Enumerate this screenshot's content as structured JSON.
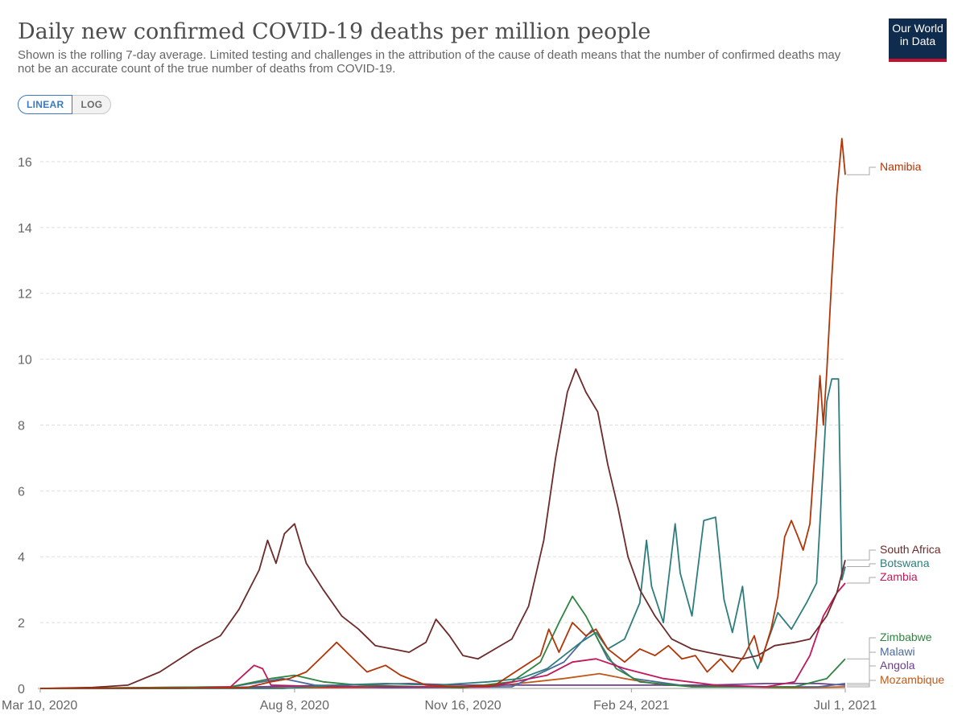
{
  "title": "Daily new confirmed COVID-19 deaths per million people",
  "subtitle": "Shown is the rolling 7-day average. Limited testing and challenges in the attribution of the cause of death means that the number of confirmed deaths may not be an accurate count of the true number of deaths from COVID-19.",
  "logo": {
    "line1": "Our World",
    "line2": "in Data"
  },
  "scale_toggle": {
    "linear": "LINEAR",
    "log": "LOG",
    "selected": "linear"
  },
  "chart_data": {
    "type": "line",
    "title": "Daily new confirmed COVID-19 deaths per million people",
    "ylim": [
      0,
      17
    ],
    "yticks": [
      0,
      2,
      4,
      6,
      8,
      10,
      12,
      14,
      16
    ],
    "ytick_labels": [
      "0",
      "2",
      "4",
      "6",
      "8",
      "10",
      "12",
      "14",
      "16"
    ],
    "xlim": [
      "2020-03-10",
      "2021-07-01"
    ],
    "xticks": [
      "2020-03-10",
      "2020-08-08",
      "2020-11-16",
      "2021-02-24",
      "2021-07-01"
    ],
    "xtick_labels": [
      "Mar 10, 2020",
      "Aug 8, 2020",
      "Nov 16, 2020",
      "Feb 24, 2021",
      "Jul 1, 2021"
    ],
    "grid": "horizontal-dashed",
    "legend": "right-end-labels",
    "series": [
      {
        "name": "Namibia",
        "color": "#b13507",
        "label_value": 15.6,
        "points": [
          [
            "2020-03-10",
            0
          ],
          [
            "2020-07-10",
            0.02
          ],
          [
            "2020-07-25",
            0.2
          ],
          [
            "2020-08-05",
            0.3
          ],
          [
            "2020-08-15",
            0.5
          ],
          [
            "2020-08-25",
            1.0
          ],
          [
            "2020-09-02",
            1.4
          ],
          [
            "2020-09-10",
            1.0
          ],
          [
            "2020-09-20",
            0.5
          ],
          [
            "2020-10-01",
            0.7
          ],
          [
            "2020-10-10",
            0.4
          ],
          [
            "2020-10-25",
            0.1
          ],
          [
            "2020-11-15",
            0.05
          ],
          [
            "2020-12-05",
            0.1
          ],
          [
            "2020-12-20",
            0.6
          ],
          [
            "2021-01-01",
            1.0
          ],
          [
            "2021-01-06",
            1.8
          ],
          [
            "2021-01-12",
            1.1
          ],
          [
            "2021-01-20",
            2.0
          ],
          [
            "2021-01-28",
            1.6
          ],
          [
            "2021-02-03",
            1.8
          ],
          [
            "2021-02-10",
            1.2
          ],
          [
            "2021-02-20",
            0.8
          ],
          [
            "2021-03-01",
            1.2
          ],
          [
            "2021-03-10",
            1.0
          ],
          [
            "2021-03-18",
            1.3
          ],
          [
            "2021-03-26",
            0.9
          ],
          [
            "2021-04-03",
            1.0
          ],
          [
            "2021-04-10",
            0.5
          ],
          [
            "2021-04-18",
            0.9
          ],
          [
            "2021-04-25",
            0.5
          ],
          [
            "2021-05-02",
            1.0
          ],
          [
            "2021-05-08",
            1.6
          ],
          [
            "2021-05-12",
            0.8
          ],
          [
            "2021-05-18",
            1.8
          ],
          [
            "2021-05-22",
            2.8
          ],
          [
            "2021-05-26",
            4.6
          ],
          [
            "2021-05-30",
            5.1
          ],
          [
            "2021-06-03",
            4.6
          ],
          [
            "2021-06-06",
            4.2
          ],
          [
            "2021-06-10",
            5.0
          ],
          [
            "2021-06-14",
            7.9
          ],
          [
            "2021-06-16",
            9.5
          ],
          [
            "2021-06-18",
            8.0
          ],
          [
            "2021-06-20",
            9.6
          ],
          [
            "2021-06-23",
            12.5
          ],
          [
            "2021-06-26",
            15.0
          ],
          [
            "2021-06-29",
            16.7
          ],
          [
            "2021-07-01",
            15.6
          ]
        ]
      },
      {
        "name": "South Africa",
        "color": "#6e2a2a",
        "label_value": 3.9,
        "points": [
          [
            "2020-03-10",
            0
          ],
          [
            "2020-04-10",
            0.03
          ],
          [
            "2020-05-01",
            0.1
          ],
          [
            "2020-05-20",
            0.5
          ],
          [
            "2020-06-10",
            1.2
          ],
          [
            "2020-06-25",
            1.6
          ],
          [
            "2020-07-06",
            2.4
          ],
          [
            "2020-07-18",
            3.6
          ],
          [
            "2020-07-23",
            4.5
          ],
          [
            "2020-07-28",
            3.8
          ],
          [
            "2020-08-02",
            4.7
          ],
          [
            "2020-08-08",
            5.0
          ],
          [
            "2020-08-15",
            3.8
          ],
          [
            "2020-08-25",
            3.0
          ],
          [
            "2020-09-05",
            2.2
          ],
          [
            "2020-09-15",
            1.8
          ],
          [
            "2020-09-25",
            1.3
          ],
          [
            "2020-10-05",
            1.2
          ],
          [
            "2020-10-15",
            1.1
          ],
          [
            "2020-10-25",
            1.4
          ],
          [
            "2020-10-31",
            2.1
          ],
          [
            "2020-11-08",
            1.6
          ],
          [
            "2020-11-16",
            1.0
          ],
          [
            "2020-11-25",
            0.9
          ],
          [
            "2020-12-05",
            1.2
          ],
          [
            "2020-12-15",
            1.5
          ],
          [
            "2020-12-25",
            2.5
          ],
          [
            "2021-01-03",
            4.5
          ],
          [
            "2021-01-10",
            7.0
          ],
          [
            "2021-01-17",
            9.0
          ],
          [
            "2021-01-22",
            9.7
          ],
          [
            "2021-01-28",
            9.0
          ],
          [
            "2021-02-04",
            8.4
          ],
          [
            "2021-02-10",
            6.8
          ],
          [
            "2021-02-16",
            5.5
          ],
          [
            "2021-02-22",
            4.0
          ],
          [
            "2021-03-01",
            3.0
          ],
          [
            "2021-03-10",
            2.2
          ],
          [
            "2021-03-20",
            1.5
          ],
          [
            "2021-04-01",
            1.2
          ],
          [
            "2021-04-10",
            1.1
          ],
          [
            "2021-04-20",
            1.0
          ],
          [
            "2021-05-01",
            0.9
          ],
          [
            "2021-05-10",
            1.0
          ],
          [
            "2021-05-20",
            1.3
          ],
          [
            "2021-06-01",
            1.4
          ],
          [
            "2021-06-10",
            1.5
          ],
          [
            "2021-06-20",
            2.2
          ],
          [
            "2021-06-26",
            2.9
          ],
          [
            "2021-07-01",
            3.9
          ]
        ]
      },
      {
        "name": "Botswana",
        "color": "#2e7d7d",
        "label_value": 3.7,
        "points": [
          [
            "2020-03-10",
            0
          ],
          [
            "2020-08-01",
            0
          ],
          [
            "2020-09-01",
            0.1
          ],
          [
            "2020-10-01",
            0.15
          ],
          [
            "2020-11-01",
            0.1
          ],
          [
            "2020-12-01",
            0.2
          ],
          [
            "2020-12-20",
            0.3
          ],
          [
            "2021-01-05",
            0.6
          ],
          [
            "2021-01-15",
            1.0
          ],
          [
            "2021-01-25",
            1.4
          ],
          [
            "2021-02-03",
            1.7
          ],
          [
            "2021-02-10",
            1.2
          ],
          [
            "2021-02-20",
            1.5
          ],
          [
            "2021-03-01",
            2.6
          ],
          [
            "2021-03-05",
            4.5
          ],
          [
            "2021-03-08",
            3.1
          ],
          [
            "2021-03-15",
            2.0
          ],
          [
            "2021-03-22",
            5.0
          ],
          [
            "2021-03-25",
            3.5
          ],
          [
            "2021-04-01",
            2.2
          ],
          [
            "2021-04-08",
            5.1
          ],
          [
            "2021-04-15",
            5.2
          ],
          [
            "2021-04-20",
            2.7
          ],
          [
            "2021-04-25",
            1.7
          ],
          [
            "2021-05-01",
            3.1
          ],
          [
            "2021-05-05",
            1.2
          ],
          [
            "2021-05-10",
            0.6
          ],
          [
            "2021-05-15",
            1.3
          ],
          [
            "2021-05-22",
            2.3
          ],
          [
            "2021-05-30",
            1.8
          ],
          [
            "2021-06-08",
            2.6
          ],
          [
            "2021-06-14",
            3.2
          ],
          [
            "2021-06-20",
            8.7
          ],
          [
            "2021-06-23",
            9.4
          ],
          [
            "2021-06-27",
            9.4
          ],
          [
            "2021-06-29",
            3.3
          ],
          [
            "2021-07-01",
            3.7
          ]
        ]
      },
      {
        "name": "Zambia",
        "color": "#c2185b",
        "label_value": 3.2,
        "points": [
          [
            "2020-03-10",
            0
          ],
          [
            "2020-06-01",
            0
          ],
          [
            "2020-07-01",
            0.05
          ],
          [
            "2020-07-15",
            0.7
          ],
          [
            "2020-07-20",
            0.6
          ],
          [
            "2020-07-25",
            0.1
          ],
          [
            "2020-09-01",
            0.05
          ],
          [
            "2020-12-01",
            0.05
          ],
          [
            "2021-01-05",
            0.4
          ],
          [
            "2021-01-20",
            0.8
          ],
          [
            "2021-02-03",
            0.9
          ],
          [
            "2021-02-20",
            0.6
          ],
          [
            "2021-03-15",
            0.3
          ],
          [
            "2021-04-15",
            0.1
          ],
          [
            "2021-05-15",
            0.05
          ],
          [
            "2021-06-01",
            0.2
          ],
          [
            "2021-06-10",
            1.0
          ],
          [
            "2021-06-18",
            2.2
          ],
          [
            "2021-06-26",
            2.9
          ],
          [
            "2021-07-01",
            3.2
          ]
        ]
      },
      {
        "name": "Zimbabwe",
        "color": "#2e8540",
        "label_value": 0.9,
        "points": [
          [
            "2020-03-10",
            0
          ],
          [
            "2020-07-01",
            0.05
          ],
          [
            "2020-07-25",
            0.3
          ],
          [
            "2020-08-08",
            0.4
          ],
          [
            "2020-08-25",
            0.2
          ],
          [
            "2020-09-15",
            0.1
          ],
          [
            "2020-11-15",
            0.02
          ],
          [
            "2020-12-15",
            0.2
          ],
          [
            "2021-01-01",
            0.8
          ],
          [
            "2021-01-12",
            2.0
          ],
          [
            "2021-01-20",
            2.8
          ],
          [
            "2021-01-28",
            2.2
          ],
          [
            "2021-02-05",
            1.4
          ],
          [
            "2021-02-15",
            0.6
          ],
          [
            "2021-03-01",
            0.2
          ],
          [
            "2021-04-01",
            0.05
          ],
          [
            "2021-06-01",
            0.05
          ],
          [
            "2021-06-20",
            0.3
          ],
          [
            "2021-07-01",
            0.9
          ]
        ]
      },
      {
        "name": "Malawi",
        "color": "#4c6a9c",
        "label_value": 0.15,
        "points": [
          [
            "2020-03-10",
            0
          ],
          [
            "2020-07-01",
            0.05
          ],
          [
            "2020-08-01",
            0.3
          ],
          [
            "2020-08-20",
            0.1
          ],
          [
            "2020-10-01",
            0.02
          ],
          [
            "2020-12-15",
            0.05
          ],
          [
            "2021-01-15",
            0.8
          ],
          [
            "2021-02-01",
            1.8
          ],
          [
            "2021-02-10",
            0.9
          ],
          [
            "2021-02-25",
            0.3
          ],
          [
            "2021-04-01",
            0.05
          ],
          [
            "2021-06-15",
            0.05
          ],
          [
            "2021-07-01",
            0.15
          ]
        ]
      },
      {
        "name": "Angola",
        "color": "#6d3e91",
        "label_value": 0.1,
        "points": [
          [
            "2020-03-10",
            0
          ],
          [
            "2020-07-01",
            0.03
          ],
          [
            "2020-08-15",
            0.08
          ],
          [
            "2020-10-15",
            0.15
          ],
          [
            "2020-11-15",
            0.1
          ],
          [
            "2021-01-10",
            0.1
          ],
          [
            "2021-02-10",
            0.1
          ],
          [
            "2021-04-10",
            0.1
          ],
          [
            "2021-05-15",
            0.15
          ],
          [
            "2021-06-15",
            0.15
          ],
          [
            "2021-07-01",
            0.1
          ]
        ]
      },
      {
        "name": "Mozambique",
        "color": "#c05917",
        "label_value": 0.05,
        "points": [
          [
            "2020-03-10",
            0
          ],
          [
            "2020-08-01",
            0.02
          ],
          [
            "2020-12-01",
            0.05
          ],
          [
            "2021-01-15",
            0.3
          ],
          [
            "2021-02-05",
            0.45
          ],
          [
            "2021-02-20",
            0.3
          ],
          [
            "2021-03-15",
            0.1
          ],
          [
            "2021-06-01",
            0.02
          ],
          [
            "2021-07-01",
            0.05
          ]
        ]
      }
    ]
  }
}
